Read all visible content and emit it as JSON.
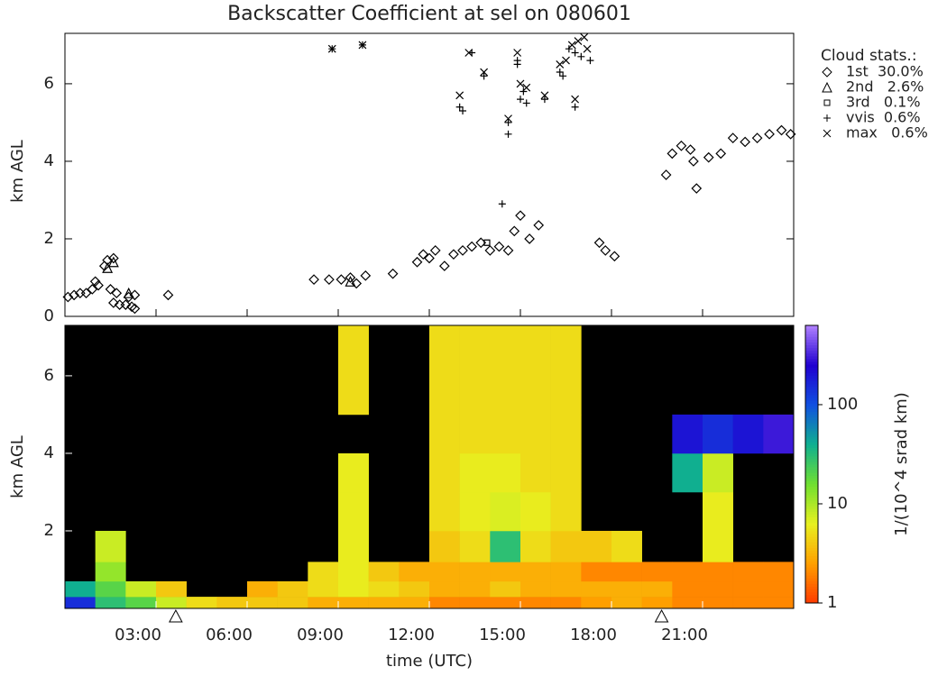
{
  "chart_data": [
    {
      "type": "scatter",
      "title": "Backscatter Coefficient at sel on 080601",
      "ylabel": "km AGL",
      "legend_title": "Cloud stats.:",
      "xlim": [
        0,
        24
      ],
      "xticks": [
        3,
        6,
        9,
        12,
        15,
        18,
        21
      ],
      "ylim": [
        0,
        7.3
      ],
      "yticks": [
        0,
        2,
        4,
        6
      ],
      "series": [
        {
          "name": "1st  30.0%",
          "marker": "diamond",
          "color": "#000000",
          "x": [
            0.1,
            0.3,
            0.5,
            0.7,
            0.9,
            1.0,
            1.1,
            1.3,
            1.4,
            1.6,
            1.5,
            1.7,
            1.6,
            1.8,
            2.0,
            2.2,
            2.1,
            2.3,
            2.3,
            3.4,
            8.2,
            8.7,
            9.1,
            9.4,
            9.6,
            9.9,
            10.8,
            11.6,
            11.8,
            12.0,
            12.2,
            12.5,
            12.8,
            13.1,
            13.4,
            13.7,
            14.0,
            14.3,
            14.6,
            14.8,
            15.0,
            15.3,
            15.6,
            17.6,
            17.8,
            18.1,
            19.8,
            20.0,
            20.3,
            20.6,
            20.7,
            20.8,
            21.2,
            21.6,
            22.0,
            22.4,
            22.8,
            23.2,
            23.6,
            23.9
          ],
          "values": [
            0.5,
            0.55,
            0.6,
            0.6,
            0.7,
            0.9,
            0.8,
            1.3,
            1.45,
            1.5,
            0.7,
            0.6,
            0.35,
            0.3,
            0.3,
            0.25,
            0.5,
            0.55,
            0.2,
            0.55,
            0.95,
            0.95,
            0.95,
            1.0,
            0.85,
            1.05,
            1.1,
            1.4,
            1.6,
            1.5,
            1.7,
            1.3,
            1.6,
            1.7,
            1.8,
            1.9,
            1.7,
            1.8,
            1.7,
            2.2,
            2.6,
            2.0,
            2.35,
            1.9,
            1.7,
            1.55,
            3.65,
            4.2,
            4.4,
            4.3,
            4.0,
            3.3,
            4.1,
            4.2,
            4.6,
            4.5,
            4.6,
            4.7,
            4.8,
            4.7
          ]
        },
        {
          "name": "2nd   2.6%",
          "marker": "triangle",
          "color": "#000000",
          "x": [
            1.4,
            1.6,
            2.1,
            9.4
          ],
          "values": [
            1.25,
            1.4,
            0.6,
            0.9
          ]
        },
        {
          "name": "3rd   0.1%",
          "marker": "square",
          "color": "#000000",
          "x": [
            13.9
          ],
          "values": [
            1.9
          ]
        },
        {
          "name": "vvis  0.6%",
          "marker": "plus",
          "color": "#000000",
          "x": [
            8.8,
            9.8,
            13.0,
            13.1,
            13.4,
            13.8,
            14.6,
            14.6,
            14.9,
            14.9,
            15.0,
            15.1,
            15.2,
            15.8,
            16.3,
            16.4,
            16.6,
            16.8,
            17.0,
            17.3,
            16.8,
            14.4
          ],
          "values": [
            6.9,
            7.0,
            5.4,
            5.3,
            6.8,
            6.2,
            4.7,
            5.0,
            6.5,
            6.6,
            5.6,
            5.8,
            5.5,
            5.6,
            6.3,
            6.2,
            6.9,
            6.8,
            6.7,
            6.6,
            5.4,
            2.9
          ]
        },
        {
          "name": "max   0.6%",
          "marker": "cross",
          "color": "#000000",
          "x": [
            8.8,
            9.8,
            13.0,
            13.3,
            13.8,
            14.6,
            14.9,
            15.0,
            15.2,
            15.8,
            16.3,
            16.5,
            16.7,
            16.9,
            17.1,
            17.2,
            16.8
          ],
          "values": [
            6.9,
            7.0,
            5.7,
            6.8,
            6.3,
            5.1,
            6.8,
            6.0,
            5.9,
            5.7,
            6.5,
            6.6,
            7.0,
            7.1,
            7.2,
            6.9,
            5.6
          ]
        }
      ]
    },
    {
      "type": "heatmap",
      "ylabel": "km AGL",
      "xlabel": "time (UTC)",
      "colorbar_label": "1/(10^4 srad km)",
      "xlim": [
        0,
        24
      ],
      "xticks": [
        {
          "value": 3,
          "label": "03:00"
        },
        {
          "value": 6,
          "label": "06:00"
        },
        {
          "value": 9,
          "label": "09:00"
        },
        {
          "value": 12,
          "label": "12:00"
        },
        {
          "value": 15,
          "label": "15:00"
        },
        {
          "value": 18,
          "label": "18:00"
        },
        {
          "value": 21,
          "label": "21:00"
        }
      ],
      "ylim": [
        0,
        7.3
      ],
      "yticks": [
        2,
        4,
        6
      ],
      "clim": [
        1,
        630
      ],
      "cticks": [
        1,
        10,
        100
      ],
      "log_color": true,
      "colormap": [
        "#ff3a00",
        "#ffa000",
        "#e8f020",
        "#70e030",
        "#10b090",
        "#1050e0",
        "#2000d0",
        "#b080ff"
      ],
      "triangles_x": [
        3.65,
        19.65
      ],
      "xbins": [
        0,
        1,
        2,
        3,
        4,
        5,
        6,
        7,
        8,
        9,
        10,
        11,
        12,
        13,
        14,
        15,
        16,
        17,
        18,
        19,
        20,
        21,
        22,
        23,
        24
      ],
      "ybins": [
        0,
        0.3,
        0.7,
        1.2,
        2,
        3,
        4,
        5,
        7.3
      ],
      "z": [
        [
          150,
          30,
          20,
          8,
          5,
          4,
          4,
          4,
          3,
          3,
          3,
          3,
          2,
          2,
          2,
          2,
          2,
          2.5,
          3,
          2.5,
          2,
          2,
          2,
          2
        ],
        [
          40,
          20,
          8,
          4,
          null,
          null,
          3,
          4,
          5,
          6,
          5,
          4,
          3,
          3,
          4,
          3,
          3,
          3,
          3,
          3,
          2,
          2,
          2,
          2
        ],
        [
          null,
          12,
          null,
          null,
          null,
          null,
          null,
          null,
          5,
          6,
          4,
          3,
          3,
          3,
          3,
          3,
          3,
          2,
          2,
          2,
          2,
          2,
          2,
          2
        ],
        [
          null,
          8,
          null,
          null,
          null,
          null,
          null,
          null,
          null,
          6,
          null,
          null,
          4,
          5,
          30,
          5,
          4,
          4,
          5,
          null,
          null,
          6,
          null,
          null
        ],
        [
          null,
          null,
          null,
          null,
          null,
          null,
          null,
          null,
          null,
          6,
          null,
          null,
          5,
          6,
          7,
          6,
          5,
          null,
          null,
          null,
          null,
          6,
          null,
          null
        ],
        [
          null,
          null,
          null,
          null,
          null,
          null,
          null,
          null,
          null,
          6,
          null,
          null,
          5,
          6,
          6,
          5,
          5,
          null,
          null,
          null,
          40,
          8,
          null,
          null
        ],
        [
          null,
          null,
          null,
          null,
          null,
          null,
          null,
          null,
          null,
          null,
          null,
          null,
          5,
          5,
          5,
          5,
          5,
          null,
          null,
          null,
          200,
          150,
          200,
          300
        ],
        [
          null,
          null,
          null,
          null,
          null,
          null,
          null,
          null,
          null,
          5,
          null,
          null,
          5,
          5,
          5,
          5,
          5,
          null,
          null,
          null,
          null,
          null,
          null,
          null
        ]
      ]
    }
  ]
}
